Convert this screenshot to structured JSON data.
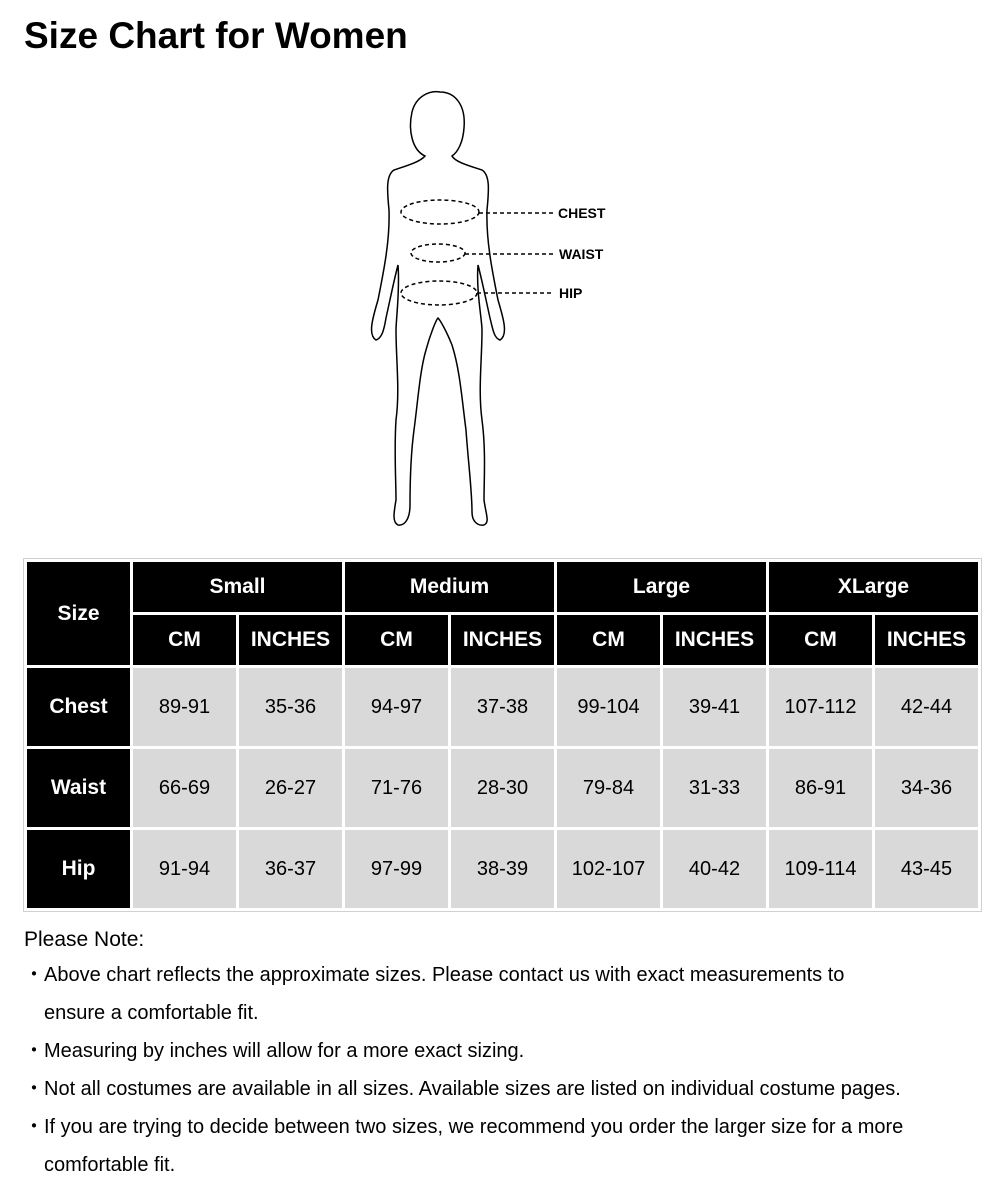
{
  "title": "Size Chart for Women",
  "figure": {
    "labels": [
      "CHEST",
      "WAIST",
      "HIP"
    ]
  },
  "table": {
    "corner": "Size",
    "sizes": [
      "Small",
      "Medium",
      "Large",
      "XLarge"
    ],
    "units": [
      "CM",
      "INCHES"
    ],
    "rows": [
      {
        "label": "Chest",
        "values": [
          "89-91",
          "35-36",
          "94-97",
          "37-38",
          "99-104",
          "39-41",
          "107-112",
          "42-44"
        ]
      },
      {
        "label": "Waist",
        "values": [
          "66-69",
          "26-27",
          "71-76",
          "28-30",
          "79-84",
          "31-33",
          "86-91",
          "34-36"
        ]
      },
      {
        "label": "Hip",
        "values": [
          "91-94",
          "36-37",
          "97-99",
          "38-39",
          "102-107",
          "40-42",
          "109-114",
          "43-45"
        ]
      }
    ]
  },
  "notes": {
    "title": "Please Note:",
    "bullet": "・",
    "items": [
      [
        "Above chart reflects the approximate sizes. Please contact us with exact measurements to",
        "ensure a comfortable fit."
      ],
      [
        "Measuring by inches will allow for a more exact sizing."
      ],
      [
        "Not all costumes are available in all sizes. Available sizes are listed on individual costume pages."
      ],
      [
        "If you are trying to decide between two sizes, we recommend you order the larger size for a more",
        "comfortable fit."
      ]
    ]
  }
}
